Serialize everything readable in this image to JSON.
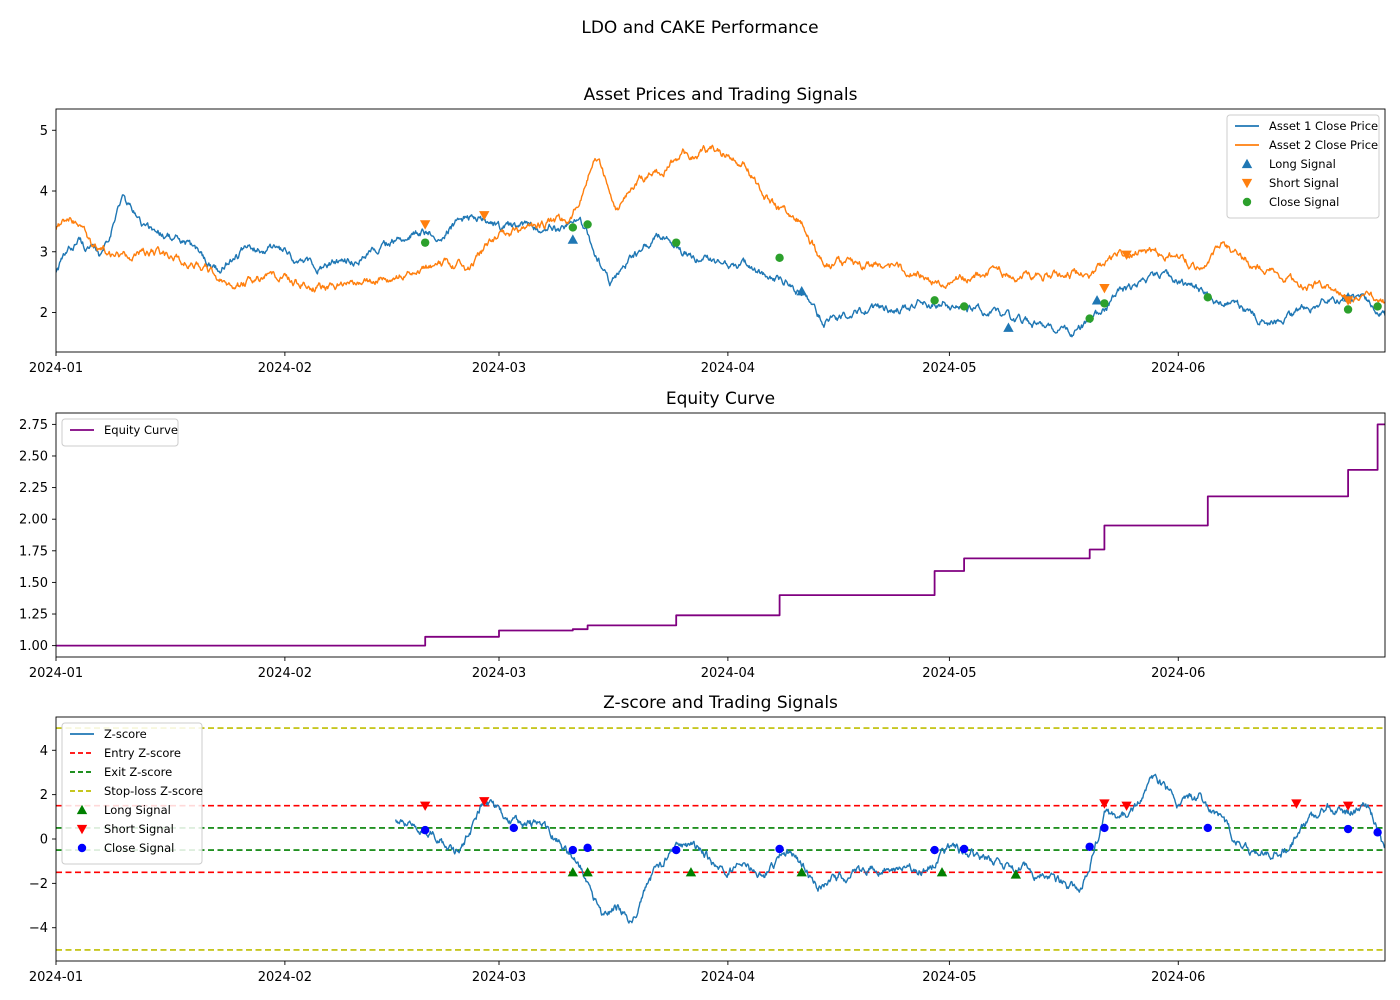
{
  "figure": {
    "suptitle": "LDO and CAKE Performance"
  },
  "colors": {
    "asset1": "#1f77b4",
    "asset2": "#ff7f0e",
    "signal_green": "#2ca02c",
    "equity": "#800080",
    "zscore": "#1f77b4",
    "entry": "#ff0000",
    "exit": "#008000",
    "stoploss": "#bfbf00",
    "long_z": "#008000",
    "short_z": "#ff0000",
    "close_z": "#0000ff"
  },
  "chart_data": [
    {
      "type": "line",
      "title": "Asset Prices and Trading Signals",
      "xlabel": "",
      "ylabel": "",
      "xlim": [
        "2024-01-01",
        "2024-06-29"
      ],
      "ylim": [
        1.35,
        5.35
      ],
      "x_ticks": [
        "2024-01-01",
        "2024-02-01",
        "2024-03-01",
        "2024-04-01",
        "2024-05-01",
        "2024-06-01"
      ],
      "x_tick_labels": [
        "2024-01",
        "2024-02",
        "2024-03",
        "2024-04",
        "2024-05",
        "2024-06"
      ],
      "y_ticks": [
        2,
        3,
        4,
        5
      ],
      "y_tick_labels": [
        "2",
        "3",
        "4",
        "5"
      ],
      "legend": {
        "loc": "upper right",
        "entries": [
          "Asset 1 Close Price",
          "Asset 2 Close Price",
          "Long Signal",
          "Short Signal",
          "Close Signal"
        ]
      },
      "series": [
        {
          "name": "Asset 1 Close Price",
          "color_key": "asset1",
          "x": [
            "2024-01-01",
            "2024-01-04",
            "2024-01-07",
            "2024-01-10",
            "2024-01-13",
            "2024-01-16",
            "2024-01-20",
            "2024-01-23",
            "2024-01-26",
            "2024-01-30",
            "2024-02-03",
            "2024-02-06",
            "2024-02-10",
            "2024-02-14",
            "2024-02-18",
            "2024-02-22",
            "2024-02-26",
            "2024-03-01",
            "2024-03-05",
            "2024-03-09",
            "2024-03-12",
            "2024-03-16",
            "2024-03-19",
            "2024-03-23",
            "2024-03-26",
            "2024-03-30",
            "2024-04-03",
            "2024-04-06",
            "2024-04-09",
            "2024-04-12",
            "2024-04-14",
            "2024-04-18",
            "2024-04-22",
            "2024-04-26",
            "2024-04-30",
            "2024-05-03",
            "2024-05-06",
            "2024-05-10",
            "2024-05-14",
            "2024-05-18",
            "2024-05-21",
            "2024-05-24",
            "2024-05-26",
            "2024-05-30",
            "2024-06-03",
            "2024-06-07",
            "2024-06-11",
            "2024-06-15",
            "2024-06-19",
            "2024-06-22",
            "2024-06-26",
            "2024-06-29"
          ],
          "values": [
            2.7,
            3.2,
            2.9,
            3.9,
            3.4,
            3.3,
            3.0,
            2.7,
            3.0,
            3.1,
            2.8,
            2.75,
            2.85,
            3.1,
            3.3,
            3.3,
            3.6,
            3.4,
            3.4,
            3.4,
            3.5,
            2.5,
            2.9,
            3.3,
            3.0,
            2.8,
            2.8,
            2.6,
            2.5,
            2.2,
            1.8,
            2.0,
            2.05,
            2.1,
            2.2,
            2.05,
            2.0,
            1.85,
            1.75,
            1.7,
            1.9,
            2.3,
            2.4,
            2.6,
            2.4,
            2.2,
            1.95,
            1.85,
            2.1,
            2.2,
            2.25,
            1.95
          ]
        },
        {
          "name": "Asset 2 Close Price",
          "color_key": "asset2",
          "x": [
            "2024-01-01",
            "2024-01-03",
            "2024-01-06",
            "2024-01-10",
            "2024-01-14",
            "2024-01-18",
            "2024-01-22",
            "2024-01-25",
            "2024-01-29",
            "2024-02-02",
            "2024-02-06",
            "2024-02-10",
            "2024-02-14",
            "2024-02-18",
            "2024-02-22",
            "2024-02-26",
            "2024-03-01",
            "2024-03-05",
            "2024-03-09",
            "2024-03-11",
            "2024-03-14",
            "2024-03-17",
            "2024-03-20",
            "2024-03-23",
            "2024-03-26",
            "2024-03-30",
            "2024-04-03",
            "2024-04-06",
            "2024-04-09",
            "2024-04-11",
            "2024-04-14",
            "2024-04-18",
            "2024-04-22",
            "2024-04-26",
            "2024-04-30",
            "2024-05-04",
            "2024-05-08",
            "2024-05-12",
            "2024-05-16",
            "2024-05-20",
            "2024-05-24",
            "2024-05-28",
            "2024-06-01",
            "2024-06-04",
            "2024-06-07",
            "2024-06-11",
            "2024-06-15",
            "2024-06-19",
            "2024-06-23",
            "2024-06-26",
            "2024-06-29"
          ],
          "values": [
            3.4,
            3.6,
            3.1,
            2.9,
            3.0,
            2.85,
            2.7,
            2.35,
            2.6,
            2.5,
            2.45,
            2.45,
            2.55,
            2.7,
            2.8,
            2.75,
            3.3,
            3.35,
            3.5,
            3.6,
            4.6,
            3.7,
            4.2,
            4.35,
            4.6,
            4.7,
            4.5,
            3.9,
            3.6,
            3.5,
            2.8,
            2.8,
            2.75,
            2.65,
            2.5,
            2.6,
            2.7,
            2.6,
            2.6,
            2.65,
            3.0,
            3.0,
            2.9,
            2.7,
            3.1,
            2.8,
            2.6,
            2.45,
            2.3,
            2.25,
            2.15
          ]
        }
      ],
      "markers": [
        {
          "name": "Long Signal",
          "shape": "triangle-up",
          "color_key": "asset1",
          "x": [
            "2024-03-11",
            "2024-04-11",
            "2024-05-09",
            "2024-05-21",
            "2024-06-24"
          ],
          "y": [
            3.2,
            2.35,
            1.75,
            2.2,
            2.25
          ]
        },
        {
          "name": "Short Signal",
          "shape": "triangle-down",
          "color_key": "asset2",
          "x": [
            "2024-02-20",
            "2024-02-28",
            "2024-05-22",
            "2024-05-25",
            "2024-06-24"
          ],
          "y": [
            3.45,
            3.6,
            2.4,
            2.95,
            2.2
          ]
        },
        {
          "name": "Close Signal",
          "shape": "circle",
          "color_key": "signal_green",
          "x": [
            "2024-02-20",
            "2024-03-11",
            "2024-03-13",
            "2024-03-25",
            "2024-04-08",
            "2024-04-29",
            "2024-05-03",
            "2024-05-20",
            "2024-05-22",
            "2024-06-05",
            "2024-06-24",
            "2024-06-28"
          ],
          "y": [
            3.15,
            3.4,
            3.45,
            3.15,
            2.9,
            2.2,
            2.1,
            1.9,
            2.15,
            2.25,
            2.05,
            2.1
          ]
        }
      ]
    },
    {
      "type": "line",
      "title": "Equity Curve",
      "xlabel": "",
      "ylabel": "",
      "xlim": [
        "2024-01-01",
        "2024-06-29"
      ],
      "ylim": [
        0.91,
        2.84
      ],
      "x_ticks": [
        "2024-01-01",
        "2024-02-01",
        "2024-03-01",
        "2024-04-01",
        "2024-05-01",
        "2024-06-01"
      ],
      "x_tick_labels": [
        "2024-01",
        "2024-02",
        "2024-03",
        "2024-04",
        "2024-05",
        "2024-06"
      ],
      "y_ticks": [
        1.0,
        1.25,
        1.5,
        1.75,
        2.0,
        2.25,
        2.5,
        2.75
      ],
      "y_tick_labels": [
        "1.00",
        "1.25",
        "1.50",
        "1.75",
        "2.00",
        "2.25",
        "2.50",
        "2.75"
      ],
      "legend": {
        "loc": "upper left",
        "entries": [
          "Equity Curve"
        ]
      },
      "series": [
        {
          "name": "Equity Curve",
          "color_key": "equity",
          "step": true,
          "x": [
            "2024-01-01",
            "2024-02-20",
            "2024-03-01",
            "2024-03-11",
            "2024-03-13",
            "2024-03-25",
            "2024-04-08",
            "2024-04-29",
            "2024-05-03",
            "2024-05-20",
            "2024-05-22",
            "2024-06-05",
            "2024-06-24",
            "2024-06-28",
            "2024-06-29"
          ],
          "values": [
            1.0,
            1.07,
            1.12,
            1.13,
            1.16,
            1.24,
            1.4,
            1.59,
            1.69,
            1.76,
            1.95,
            2.18,
            2.39,
            2.75,
            2.75
          ]
        }
      ]
    },
    {
      "type": "line",
      "title": "Z-score and Trading Signals",
      "xlabel": "",
      "ylabel": "",
      "xlim": [
        "2024-01-01",
        "2024-06-29"
      ],
      "ylim": [
        -5.5,
        5.5
      ],
      "x_ticks": [
        "2024-01-01",
        "2024-02-01",
        "2024-03-01",
        "2024-04-01",
        "2024-05-01",
        "2024-06-01"
      ],
      "x_tick_labels": [
        "2024-01",
        "2024-02",
        "2024-03",
        "2024-04",
        "2024-05",
        "2024-06"
      ],
      "y_ticks": [
        -4,
        -2,
        0,
        2,
        4
      ],
      "y_tick_labels": [
        "−4",
        "−2",
        "0",
        "2",
        "4"
      ],
      "legend": {
        "loc": "upper left",
        "entries": [
          "Z-score",
          "Entry Z-score",
          "Exit Z-score",
          "Stop-loss Z-score",
          "Long Signal",
          "Short Signal",
          "Close Signal"
        ]
      },
      "series": [
        {
          "name": "Z-score",
          "color_key": "zscore",
          "x": [
            "2024-02-16",
            "2024-02-19",
            "2024-02-21",
            "2024-02-24",
            "2024-02-26",
            "2024-02-28",
            "2024-03-01",
            "2024-03-04",
            "2024-03-07",
            "2024-03-10",
            "2024-03-12",
            "2024-03-15",
            "2024-03-17",
            "2024-03-19",
            "2024-03-22",
            "2024-03-25",
            "2024-03-28",
            "2024-03-31",
            "2024-04-03",
            "2024-04-06",
            "2024-04-09",
            "2024-04-11",
            "2024-04-13",
            "2024-04-16",
            "2024-04-19",
            "2024-04-22",
            "2024-04-25",
            "2024-04-28",
            "2024-05-01",
            "2024-05-04",
            "2024-05-07",
            "2024-05-10",
            "2024-05-13",
            "2024-05-16",
            "2024-05-19",
            "2024-05-22",
            "2024-05-24",
            "2024-05-26",
            "2024-05-29",
            "2024-06-01",
            "2024-06-04",
            "2024-06-07",
            "2024-06-10",
            "2024-06-13",
            "2024-06-16",
            "2024-06-18",
            "2024-06-21",
            "2024-06-24",
            "2024-06-27",
            "2024-06-29"
          ],
          "values": [
            1.0,
            0.3,
            0.5,
            -0.7,
            0.3,
            1.9,
            1.2,
            0.6,
            0.7,
            -0.5,
            -1.2,
            -3.5,
            -3.0,
            -3.6,
            -1.5,
            -0.3,
            -0.5,
            -1.3,
            -1.4,
            -1.6,
            -0.5,
            -1.2,
            -2.2,
            -1.7,
            -1.5,
            -1.2,
            -1.4,
            -1.3,
            -0.5,
            -0.7,
            -1.0,
            -1.3,
            -1.6,
            -2.0,
            -2.4,
            1.0,
            0.8,
            1.3,
            2.8,
            1.5,
            1.8,
            0.8,
            -0.5,
            -0.7,
            -0.4,
            0.5,
            1.5,
            1.2,
            1.4,
            -0.4
          ]
        }
      ],
      "hlines": [
        {
          "name": "Entry Z-score",
          "color_key": "entry",
          "y": [
            1.5,
            -1.5
          ]
        },
        {
          "name": "Exit Z-score",
          "color_key": "exit",
          "y": [
            0.5,
            -0.5
          ]
        },
        {
          "name": "Stop-loss Z-score",
          "color_key": "stoploss",
          "y": [
            5.0,
            -5.0
          ]
        }
      ],
      "markers": [
        {
          "name": "Long Signal",
          "shape": "triangle-up",
          "color_key": "long_z",
          "x": [
            "2024-03-11",
            "2024-03-13",
            "2024-03-27",
            "2024-04-11",
            "2024-04-30",
            "2024-05-10"
          ],
          "y": [
            -1.5,
            -1.5,
            -1.5,
            -1.5,
            -1.5,
            -1.6
          ]
        },
        {
          "name": "Short Signal",
          "shape": "triangle-down",
          "color_key": "short_z",
          "x": [
            "2024-02-20",
            "2024-02-28",
            "2024-05-22",
            "2024-05-25",
            "2024-06-17",
            "2024-06-24"
          ],
          "y": [
            1.5,
            1.7,
            1.6,
            1.5,
            1.6,
            1.5
          ]
        },
        {
          "name": "Close Signal",
          "shape": "circle",
          "color_key": "close_z",
          "x": [
            "2024-02-20",
            "2024-03-03",
            "2024-03-11",
            "2024-03-13",
            "2024-03-25",
            "2024-04-08",
            "2024-04-29",
            "2024-05-03",
            "2024-05-20",
            "2024-05-22",
            "2024-06-05",
            "2024-06-24",
            "2024-06-28"
          ],
          "y": [
            0.4,
            0.5,
            -0.5,
            -0.4,
            -0.5,
            -0.45,
            -0.5,
            -0.45,
            -0.35,
            0.5,
            0.5,
            0.45,
            0.3
          ]
        }
      ]
    }
  ]
}
